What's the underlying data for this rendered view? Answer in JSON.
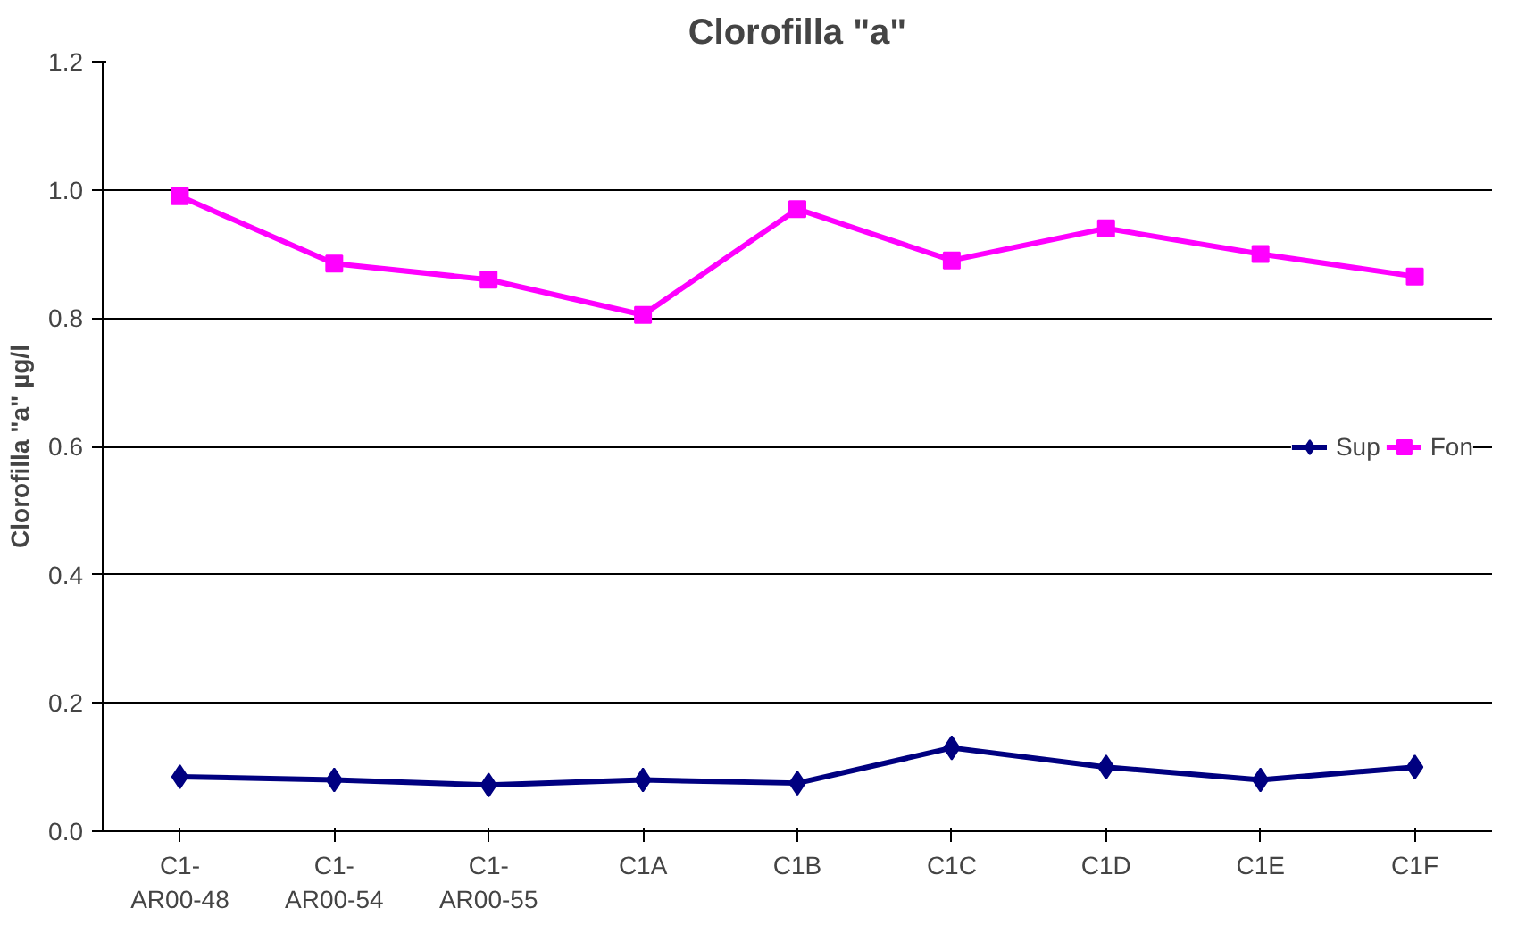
{
  "chart_data": {
    "type": "line",
    "title": "Clorofilla \"a\"",
    "ylabel": "Clorofilla \"a\" µg/l",
    "categories": [
      "C1-\nAR00-48",
      "C1-\nAR00-54",
      "C1-\nAR00-55",
      "C1A",
      "C1B",
      "C1C",
      "C1D",
      "C1E",
      "C1F"
    ],
    "series": [
      {
        "name": "Sup",
        "color": "#000080",
        "marker": "diamond",
        "values": [
          0.085,
          0.08,
          0.072,
          0.08,
          0.075,
          0.13,
          0.1,
          0.08,
          0.1
        ]
      },
      {
        "name": "Fon",
        "color": "#ff00ff",
        "marker": "square",
        "values": [
          0.99,
          0.885,
          0.86,
          0.805,
          0.97,
          0.89,
          0.94,
          0.9,
          0.865
        ]
      }
    ],
    "ylim": [
      0,
      1.2
    ],
    "yticks": [
      "0.0",
      0.2,
      0.4,
      0.6,
      0.8,
      "1.0",
      1.2
    ],
    "grid": "y",
    "legend": "right",
    "line_style": "solid"
  }
}
